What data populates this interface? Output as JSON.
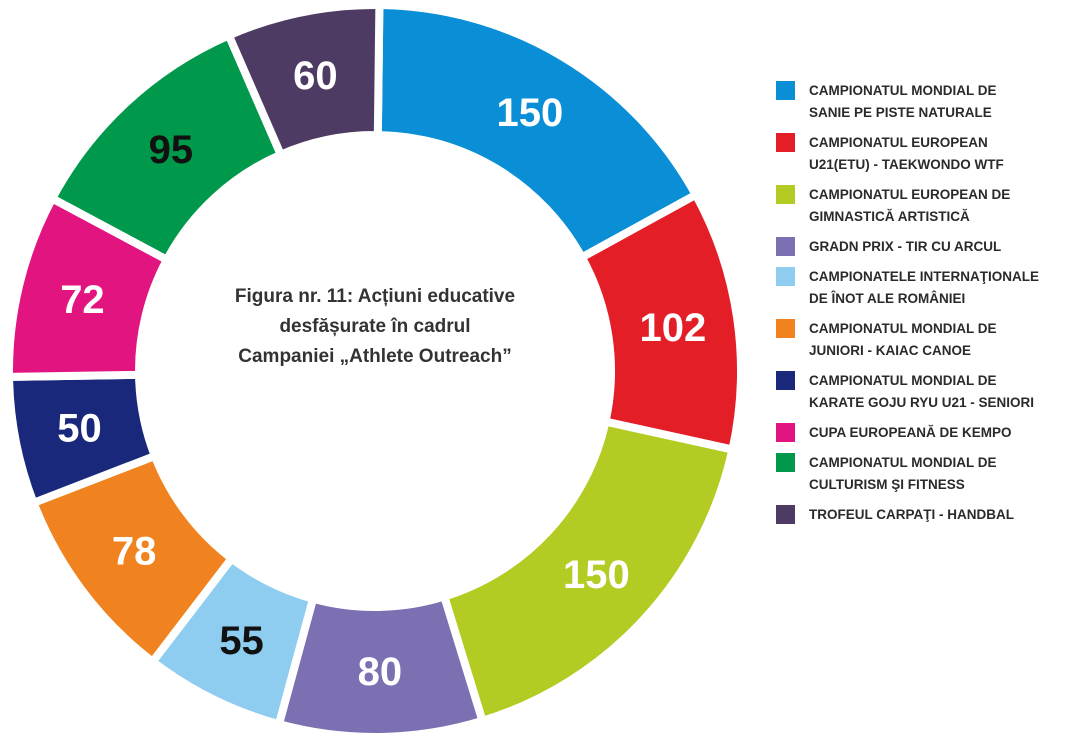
{
  "chart_data": {
    "type": "donut",
    "title": "Figura nr. 11: Acțiuni educative\ndesfășurate în cadrul\nCampaniei  „Athlete Outreach”",
    "categories": [
      "CAMPIONATUL MONDIAL DE\nSANIE PE PISTE NATURALE",
      "CAMPIONATUL EUROPEAN\nU21(ETU) - TAEKWONDO WTF",
      "CAMPIONATUL EUROPEAN DE\nGIMNASTICĂ ARTISTICĂ",
      "GRADN PRIX - TIR CU ARCUL",
      "CAMPIONATELE INTERNAŢIONALE\nDE ÎNOT ALE ROMÂNIEI",
      "CAMPIONATUL MONDIAL DE\nJUNIORI - KAIAC CANOE",
      "CAMPIONATUL MONDIAL DE\nKARATE GOJU RYU U21 - SENIORI",
      "CUPA EUROPEANĂ DE KEMPO",
      "CAMPIONATUL MONDIAL DE\nCULTURISM ŞI FITNESS",
      "TROFEUL CARPAŢI - HANDBAL"
    ],
    "values": [
      150,
      102,
      150,
      80,
      55,
      78,
      50,
      72,
      95,
      60
    ],
    "colors": [
      "#0a8fd6",
      "#e31e26",
      "#b3cb22",
      "#7c70b2",
      "#8fcdf0",
      "#f0831f",
      "#19287a",
      "#e2147f",
      "#00994b",
      "#4e3b63"
    ],
    "value_label_colors": [
      "#ffffff",
      "#ffffff",
      "#ffffff",
      "#ffffff",
      "#111111",
      "#ffffff",
      "#ffffff",
      "#ffffff",
      "#111111",
      "#ffffff"
    ],
    "legend": "right"
  }
}
